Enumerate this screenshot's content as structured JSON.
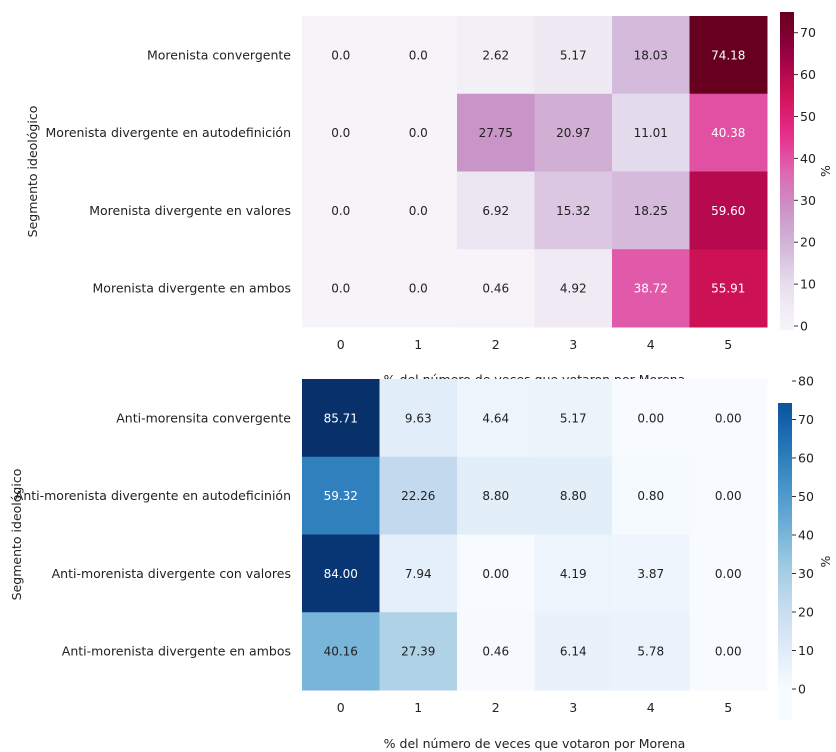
{
  "chart_data": [
    {
      "type": "heatmap",
      "title": "",
      "ylabel": "Segmento ideológico",
      "xlabel": "% del número de veces que votaron por Morena",
      "x_categories": [
        "0",
        "1",
        "2",
        "3",
        "4",
        "5"
      ],
      "y_categories": [
        "Morenista convergente",
        "Morenista divergente en autodefinición",
        "Morenista divergente en valores",
        "Morenista divergente en ambos"
      ],
      "values": [
        [
          0.0,
          0.0,
          2.62,
          5.17,
          18.03,
          74.18
        ],
        [
          0.0,
          0.0,
          27.75,
          20.97,
          11.01,
          40.38
        ],
        [
          0.0,
          0.0,
          6.92,
          15.32,
          18.25,
          59.6
        ],
        [
          0.0,
          0.0,
          0.46,
          4.92,
          38.72,
          55.91
        ]
      ],
      "value_labels": [
        [
          "0.0",
          "0.0",
          "2.62",
          "5.17",
          "18.03",
          "74.18"
        ],
        [
          "0.0",
          "0.0",
          "27.75",
          "20.97",
          "11.01",
          "40.38"
        ],
        [
          "0.0",
          "0.0",
          "6.92",
          "15.32",
          "18.25",
          "59.60"
        ],
        [
          "0.0",
          "0.0",
          "0.46",
          "4.92",
          "38.72",
          "55.91"
        ]
      ],
      "colorbar": {
        "label": "%",
        "ticks": [
          "0",
          "10",
          "20",
          "30",
          "40",
          "50",
          "60",
          "70"
        ],
        "range": [
          0,
          74.18
        ],
        "colormap": "PuRd"
      }
    },
    {
      "type": "heatmap",
      "title": "",
      "ylabel": "Segmento ideológico",
      "xlabel": "% del número de veces que votaron por Morena",
      "x_categories": [
        "0",
        "1",
        "2",
        "3",
        "4",
        "5"
      ],
      "y_categories": [
        "Anti-morensita convergente",
        "Anti-morenista divergente en autodeficinión",
        "Anti-morenista divergente con valores",
        "Anti-morenista divergente en ambos"
      ],
      "values": [
        [
          85.71,
          9.63,
          4.64,
          5.17,
          0.0,
          0.0
        ],
        [
          59.32,
          22.26,
          8.8,
          8.8,
          0.8,
          0.0
        ],
        [
          84.0,
          7.94,
          0.0,
          4.19,
          3.87,
          0.0
        ],
        [
          40.16,
          27.39,
          0.46,
          6.14,
          5.78,
          0.0
        ]
      ],
      "value_labels": [
        [
          "85.71",
          "9.63",
          "4.64",
          "5.17",
          "0.00",
          "0.00"
        ],
        [
          "59.32",
          "22.26",
          "8.80",
          "8.80",
          "0.80",
          "0.00"
        ],
        [
          "84.00",
          "7.94",
          "0.00",
          "4.19",
          "3.87",
          "0.00"
        ],
        [
          "40.16",
          "27.39",
          "0.46",
          "6.14",
          "5.78",
          "0.00"
        ]
      ],
      "colorbar": {
        "label": "%",
        "ticks": [
          "0",
          "10",
          "20",
          "30",
          "40",
          "50",
          "60",
          "70",
          "80"
        ],
        "range": [
          0,
          85.71
        ],
        "colormap": "Blues"
      }
    }
  ]
}
